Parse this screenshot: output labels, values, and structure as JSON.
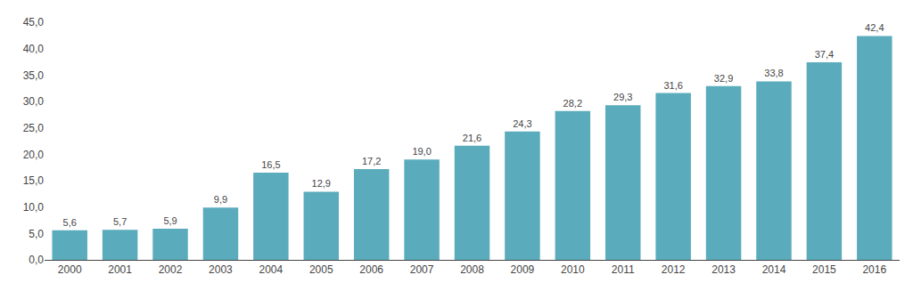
{
  "chart_data": {
    "type": "bar",
    "categories": [
      "2000",
      "2001",
      "2002",
      "2003",
      "2004",
      "2005",
      "2006",
      "2007",
      "2008",
      "2009",
      "2010",
      "2011",
      "2012",
      "2013",
      "2014",
      "2015",
      "2016"
    ],
    "values": [
      5.6,
      5.7,
      5.9,
      9.9,
      16.5,
      12.9,
      17.2,
      19.0,
      21.6,
      24.3,
      28.2,
      29.3,
      31.6,
      32.9,
      33.8,
      37.4,
      42.4
    ],
    "value_labels": [
      "5,6",
      "5,7",
      "5,9",
      "9,9",
      "16,5",
      "12,9",
      "17,2",
      "19,0",
      "21,6",
      "24,3",
      "28,2",
      "29,3",
      "31,6",
      "32,9",
      "33,8",
      "37,4",
      "42,4"
    ],
    "data_labels": true,
    "color": "#5aabbc",
    "ylim": [
      0,
      45
    ],
    "yticks": [
      {
        "value": 0.0,
        "label": "0,0"
      },
      {
        "value": 5.0,
        "label": "5,0"
      },
      {
        "value": 10.0,
        "label": "10,0"
      },
      {
        "value": 15.0,
        "label": "15,0"
      },
      {
        "value": 20.0,
        "label": "20,0"
      },
      {
        "value": 25.0,
        "label": "25,0"
      },
      {
        "value": 30.0,
        "label": "30,0"
      },
      {
        "value": 35.0,
        "label": "35,0"
      },
      {
        "value": 40.0,
        "label": "40,0"
      },
      {
        "value": 45.0,
        "label": "45,0"
      }
    ],
    "grid": false
  }
}
